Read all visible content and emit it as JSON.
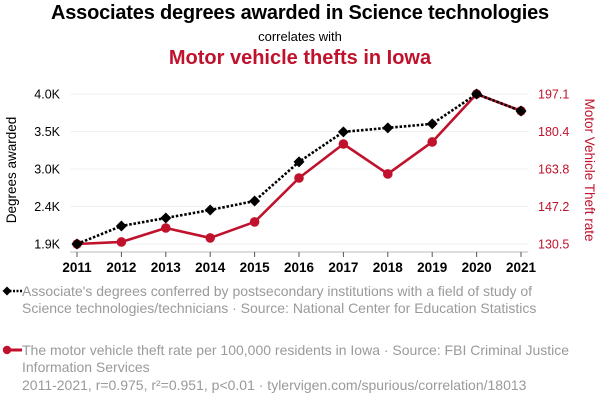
{
  "header": {
    "title": "Associates degrees awarded in Science technologies",
    "subtitle": "correlates with",
    "title2": "Motor vehicle thefts in Iowa"
  },
  "colors": {
    "series1": "#000000",
    "series2": "#c0122c",
    "grid": "#f0f0f0",
    "legend_text": "#9a9a9a"
  },
  "chart_data": {
    "type": "line",
    "title": "Associates degrees awarded in Science technologies correlates with Motor vehicle thefts in Iowa",
    "x": [
      "2011",
      "2012",
      "2013",
      "2014",
      "2015",
      "2016",
      "2017",
      "2018",
      "2019",
      "2020",
      "2021"
    ],
    "xlabel": "",
    "ylabel_left": "Degrees awarded",
    "ylabel_right": "Motor Vehicle Theft rate",
    "left_ticks": [
      "1.9K",
      "2.4K",
      "3.0K",
      "3.5K",
      "4.0K"
    ],
    "right_ticks": [
      "130.5",
      "147.2",
      "163.8",
      "180.4",
      "197.1"
    ],
    "ylim_left": [
      1900,
      4000
    ],
    "ylim_right": [
      130.5,
      197.1
    ],
    "grid": true,
    "series": [
      {
        "name": "Associate's degrees conferred by postsecondary institutions with a field of study of Science technologies/technicians · Source: National Center for Education Statistics",
        "axis": "left",
        "marker": "diamond",
        "line": "dotted",
        "values": [
          1900,
          2152,
          2264,
          2376,
          2502,
          3050,
          3470,
          3526,
          3582,
          4000,
          3762
        ]
      },
      {
        "name": "The motor vehicle theft rate per 100,000 residents in Iowa · Source: FBI Criminal Justice Information Services",
        "axis": "right",
        "marker": "circle",
        "line": "solid",
        "values": [
          130.5,
          131.4,
          137.6,
          133.2,
          140.3,
          159.8,
          174.9,
          161.6,
          175.8,
          197.1,
          189.6
        ]
      }
    ]
  },
  "legend": {
    "series1": "Associate's degrees conferred by postsecondary institutions with a field of study of Science technologies/technicians · Source: National Center for Education Statistics",
    "series2": "The motor vehicle theft rate per 100,000 residents in Iowa · Source: FBI Criminal Justice Information Services"
  },
  "footer": "2011-2021, r=0.975, r²=0.951, p<0.01 · tylervigen.com/spurious/correlation/18013"
}
